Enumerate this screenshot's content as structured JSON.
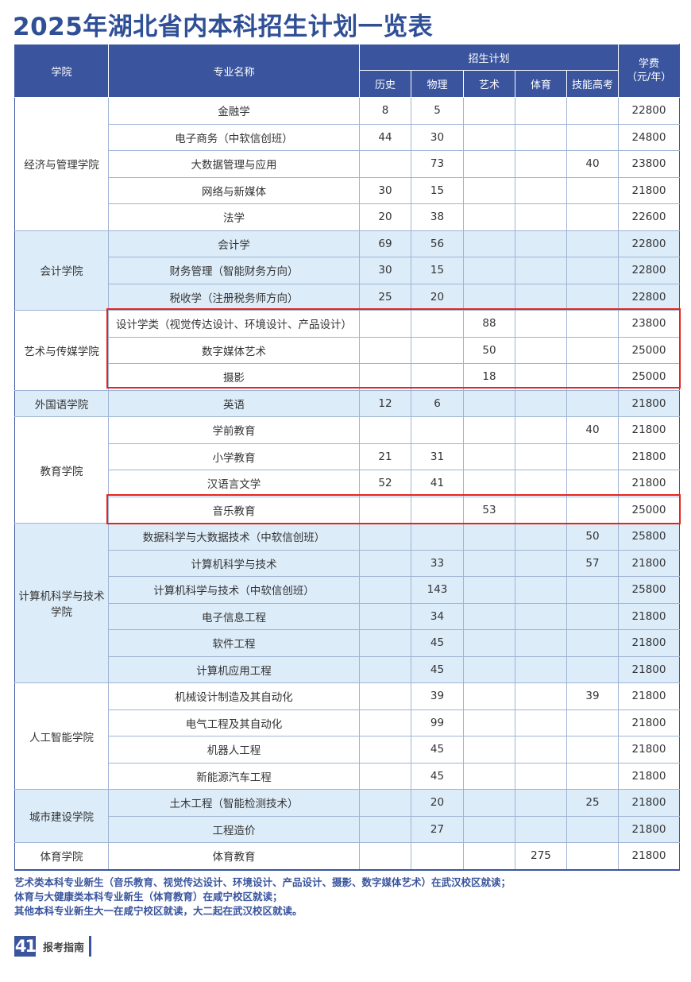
{
  "title": "2025年湖北省内本科招生计划一览表",
  "headers": {
    "college": "学院",
    "major": "专业名称",
    "plan": "招生计划",
    "history": "历史",
    "physics": "物理",
    "art": "艺术",
    "sports": "体育",
    "skill": "技能高考",
    "fee": "学费\n（元/年）"
  },
  "colors": {
    "header_bg": "#3a559e",
    "alt_row_bg": "#dcecf9",
    "highlight_border": "#e8231a"
  },
  "colleges": [
    {
      "name": "经济与管理学院",
      "majors": [
        {
          "name": "金融学",
          "history": "8",
          "physics": "5",
          "art": "",
          "sports": "",
          "skill": "",
          "fee": "22800"
        },
        {
          "name": "电子商务（中软信创班）",
          "history": "44",
          "physics": "30",
          "art": "",
          "sports": "",
          "skill": "",
          "fee": "24800"
        },
        {
          "name": "大数据管理与应用",
          "history": "",
          "physics": "73",
          "art": "",
          "sports": "",
          "skill": "40",
          "fee": "23800"
        },
        {
          "name": "网络与新媒体",
          "history": "30",
          "physics": "15",
          "art": "",
          "sports": "",
          "skill": "",
          "fee": "21800"
        },
        {
          "name": "法学",
          "history": "20",
          "physics": "38",
          "art": "",
          "sports": "",
          "skill": "",
          "fee": "22600"
        }
      ]
    },
    {
      "name": "会计学院",
      "majors": [
        {
          "name": "会计学",
          "history": "69",
          "physics": "56",
          "art": "",
          "sports": "",
          "skill": "",
          "fee": "22800"
        },
        {
          "name": "财务管理（智能财务方向）",
          "history": "30",
          "physics": "15",
          "art": "",
          "sports": "",
          "skill": "",
          "fee": "22800"
        },
        {
          "name": "税收学（注册税务师方向）",
          "history": "25",
          "physics": "20",
          "art": "",
          "sports": "",
          "skill": "",
          "fee": "22800"
        }
      ]
    },
    {
      "name": "艺术与传媒学院",
      "majors": [
        {
          "name": "设计学类（视觉传达设计、环境设计、产品设计）",
          "history": "",
          "physics": "",
          "art": "88",
          "sports": "",
          "skill": "",
          "fee": "23800"
        },
        {
          "name": "数字媒体艺术",
          "history": "",
          "physics": "",
          "art": "50",
          "sports": "",
          "skill": "",
          "fee": "25000"
        },
        {
          "name": "摄影",
          "history": "",
          "physics": "",
          "art": "18",
          "sports": "",
          "skill": "",
          "fee": "25000"
        }
      ]
    },
    {
      "name": "外国语学院",
      "majors": [
        {
          "name": "英语",
          "history": "12",
          "physics": "6",
          "art": "",
          "sports": "",
          "skill": "",
          "fee": "21800"
        }
      ]
    },
    {
      "name": "教育学院",
      "majors": [
        {
          "name": "学前教育",
          "history": "",
          "physics": "",
          "art": "",
          "sports": "",
          "skill": "40",
          "fee": "21800"
        },
        {
          "name": "小学教育",
          "history": "21",
          "physics": "31",
          "art": "",
          "sports": "",
          "skill": "",
          "fee": "21800"
        },
        {
          "name": "汉语言文学",
          "history": "52",
          "physics": "41",
          "art": "",
          "sports": "",
          "skill": "",
          "fee": "21800"
        },
        {
          "name": "音乐教育",
          "history": "",
          "physics": "",
          "art": "53",
          "sports": "",
          "skill": "",
          "fee": "25000"
        }
      ]
    },
    {
      "name": "计算机科学与技术学院",
      "majors": [
        {
          "name": "数据科学与大数据技术（中软信创班）",
          "history": "",
          "physics": "",
          "art": "",
          "sports": "",
          "skill": "50",
          "fee": "25800"
        },
        {
          "name": "计算机科学与技术",
          "history": "",
          "physics": "33",
          "art": "",
          "sports": "",
          "skill": "57",
          "fee": "21800"
        },
        {
          "name": "计算机科学与技术（中软信创班）",
          "history": "",
          "physics": "143",
          "art": "",
          "sports": "",
          "skill": "",
          "fee": "25800"
        },
        {
          "name": "电子信息工程",
          "history": "",
          "physics": "34",
          "art": "",
          "sports": "",
          "skill": "",
          "fee": "21800"
        },
        {
          "name": "软件工程",
          "history": "",
          "physics": "45",
          "art": "",
          "sports": "",
          "skill": "",
          "fee": "21800"
        },
        {
          "name": "计算机应用工程",
          "history": "",
          "physics": "45",
          "art": "",
          "sports": "",
          "skill": "",
          "fee": "21800"
        }
      ]
    },
    {
      "name": "人工智能学院",
      "majors": [
        {
          "name": "机械设计制造及其自动化",
          "history": "",
          "physics": "39",
          "art": "",
          "sports": "",
          "skill": "39",
          "fee": "21800"
        },
        {
          "name": "电气工程及其自动化",
          "history": "",
          "physics": "99",
          "art": "",
          "sports": "",
          "skill": "",
          "fee": "21800"
        },
        {
          "name": "机器人工程",
          "history": "",
          "physics": "45",
          "art": "",
          "sports": "",
          "skill": "",
          "fee": "21800"
        },
        {
          "name": "新能源汽车工程",
          "history": "",
          "physics": "45",
          "art": "",
          "sports": "",
          "skill": "",
          "fee": "21800"
        }
      ]
    },
    {
      "name": "城市建设学院",
      "majors": [
        {
          "name": "土木工程（智能检测技术）",
          "history": "",
          "physics": "20",
          "art": "",
          "sports": "",
          "skill": "25",
          "fee": "21800"
        },
        {
          "name": "工程造价",
          "history": "",
          "physics": "27",
          "art": "",
          "sports": "",
          "skill": "",
          "fee": "21800"
        }
      ]
    },
    {
      "name": "体育学院",
      "majors": [
        {
          "name": "体育教育",
          "history": "",
          "physics": "",
          "art": "",
          "sports": "275",
          "skill": "",
          "fee": "21800"
        }
      ]
    }
  ],
  "notes": [
    "艺术类本科专业新生（音乐教育、视觉传达设计、环境设计、产品设计、摄影、数字媒体艺术）在武汉校区就读；",
    "体育与大健康类本科专业新生（体育教育）在咸宁校区就读；",
    "其他本科专业新生大一在咸宁校区就读，大二起在武汉校区就读。"
  ],
  "footer": {
    "page_number": "41",
    "label": "报考指南"
  }
}
